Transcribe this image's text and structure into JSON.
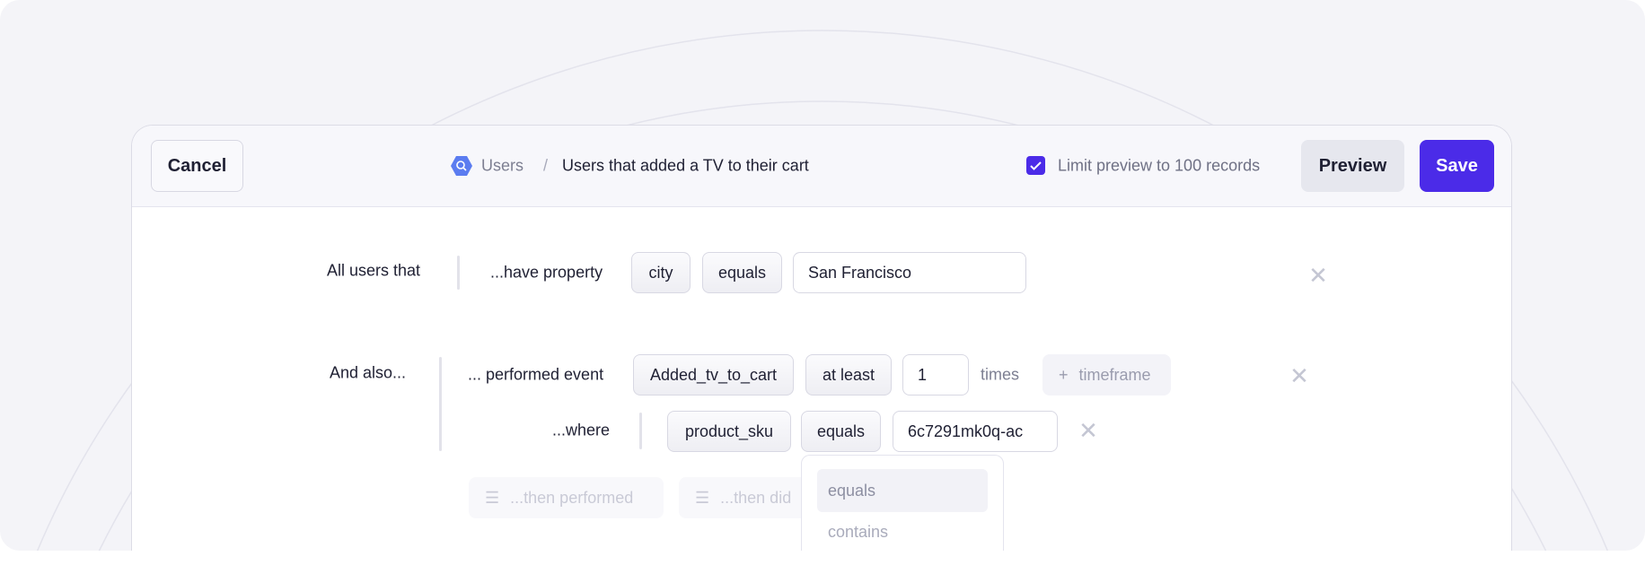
{
  "header": {
    "cancel_label": "Cancel",
    "breadcrumb_root": "Users",
    "breadcrumb_sep": "/",
    "title": "Users that added a TV to their cart",
    "limit_label": "Limit preview to 100 records",
    "limit_checked": true,
    "preview_label": "Preview",
    "save_label": "Save"
  },
  "row1": {
    "label": "All users that",
    "prefix": "...have property",
    "property": "city",
    "operator": "equals",
    "value": "San Francisco"
  },
  "row2": {
    "label": "And also...",
    "prefix": "... performed event",
    "event": "Added_tv_to_cart",
    "operator": "at least",
    "count": "1",
    "unit": "times",
    "timeframe_label": "timeframe"
  },
  "where": {
    "prefix": "...where",
    "property": "product_sku",
    "operator": "equals",
    "value": "6c7291mk0q-ac"
  },
  "dropdown": {
    "options": [
      "equals",
      "contains"
    ],
    "highlighted": "equals"
  },
  "actions": {
    "then_performed": "...then performed",
    "then_did": "...then did"
  },
  "colors": {
    "accent": "#4b2be8",
    "background": "#f4f4f8"
  }
}
